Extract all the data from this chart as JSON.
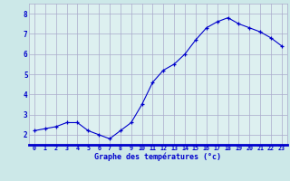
{
  "hours": [
    0,
    1,
    2,
    3,
    4,
    5,
    6,
    7,
    8,
    9,
    10,
    11,
    12,
    13,
    14,
    15,
    16,
    17,
    18,
    19,
    20,
    21,
    22,
    23
  ],
  "temps": [
    2.2,
    2.3,
    2.4,
    2.6,
    2.6,
    2.2,
    2.0,
    1.8,
    2.2,
    2.6,
    3.5,
    4.6,
    5.2,
    5.5,
    6.0,
    6.7,
    7.3,
    7.6,
    7.8,
    7.5,
    7.3,
    7.1,
    6.8,
    6.4
  ],
  "line_color": "#0000cc",
  "bg_color": "#cce8e8",
  "plot_bg": "#ddf0f0",
  "grid_color": "#aaaacc",
  "xlabel": "Graphe des températures (°c)",
  "xlabel_color": "#0000cc",
  "tick_color": "#0000cc",
  "xlim": [
    -0.5,
    23.5
  ],
  "ylim": [
    1.5,
    8.5
  ],
  "yticks": [
    2,
    3,
    4,
    5,
    6,
    7,
    8
  ],
  "xticks": [
    0,
    1,
    2,
    3,
    4,
    5,
    6,
    7,
    8,
    9,
    10,
    11,
    12,
    13,
    14,
    15,
    16,
    17,
    18,
    19,
    20,
    21,
    22,
    23
  ]
}
